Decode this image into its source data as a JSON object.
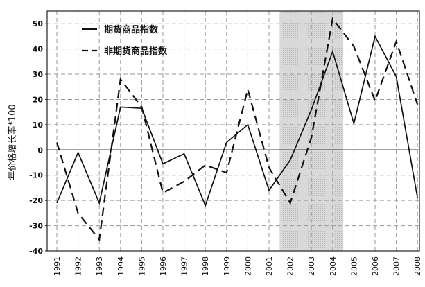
{
  "chart_data": {
    "type": "line",
    "title": "",
    "xlabel": "",
    "ylabel": "年价格增长率*100",
    "ylim": [
      -40,
      55
    ],
    "yticks": [
      -40,
      -30,
      -20,
      -10,
      0,
      10,
      20,
      30,
      40,
      50
    ],
    "grid": true,
    "legend_position": "top-left",
    "categories": [
      "1991",
      "1992",
      "1993",
      "1994",
      "1995",
      "1996",
      "1997",
      "1998",
      "1999",
      "2000",
      "2001",
      "2002",
      "2003",
      "2004",
      "2005",
      "2006",
      "2007",
      "2008"
    ],
    "shaded_region": {
      "from": "2002",
      "to": "2004"
    },
    "series": [
      {
        "name": "期货商品指数",
        "style": "solid",
        "values": [
          -21,
          -1,
          -21,
          17,
          16.5,
          -5.5,
          -1.5,
          -22,
          3,
          10,
          -16,
          -4,
          16,
          39,
          10.5,
          45,
          29,
          -19
        ]
      },
      {
        "name": "非期货商品指数",
        "style": "dashed",
        "values": [
          3,
          -25,
          -35.5,
          28,
          17,
          -17,
          -12.5,
          -6,
          -9,
          24,
          -7,
          -21,
          5,
          52,
          41,
          19.5,
          43,
          18
        ]
      }
    ]
  },
  "colors": {
    "line": "#111111",
    "grid": "#9a9a9a",
    "shade": "#d9d9d9",
    "zero_line": "#000000"
  }
}
